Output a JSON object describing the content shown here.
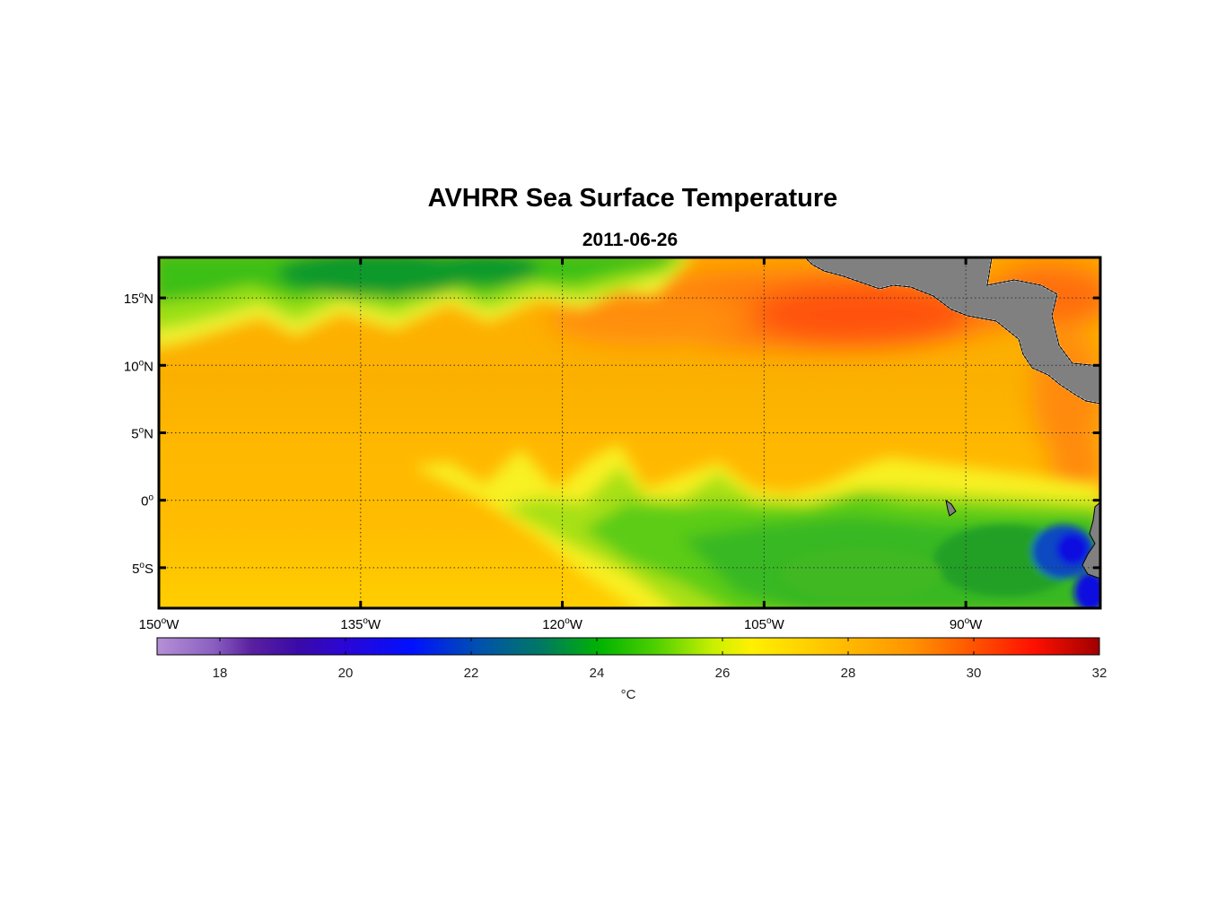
{
  "title": "AVHRR Sea Surface Temperature",
  "subtitle": "2011-06-26",
  "colors": {
    "land": "#808080",
    "coastline": "#ffffff",
    "frame": "#000000"
  },
  "map": {
    "lon_range": [
      -150,
      -80
    ],
    "lat_range": [
      -8,
      18
    ],
    "grid": "dotted",
    "lat_ticks": [
      {
        "lat": 15,
        "num": "15",
        "hem": "N"
      },
      {
        "lat": 10,
        "num": "10",
        "hem": "N"
      },
      {
        "lat": 5,
        "num": "5",
        "hem": "N"
      },
      {
        "lat": 0,
        "num": "0",
        "hem": ""
      },
      {
        "lat": -5,
        "num": "5",
        "hem": "S"
      }
    ],
    "lon_ticks": [
      {
        "lon": -150,
        "num": "150",
        "hem": "W"
      },
      {
        "lon": -135,
        "num": "135",
        "hem": "W"
      },
      {
        "lon": -120,
        "num": "120",
        "hem": "W"
      },
      {
        "lon": -105,
        "num": "105",
        "hem": "W"
      },
      {
        "lon": -90,
        "num": "90",
        "hem": "W"
      }
    ]
  },
  "colorbar": {
    "range": [
      17,
      32
    ],
    "ticks": [
      18,
      20,
      22,
      24,
      26,
      28,
      30,
      32
    ],
    "unit": "°C"
  }
}
